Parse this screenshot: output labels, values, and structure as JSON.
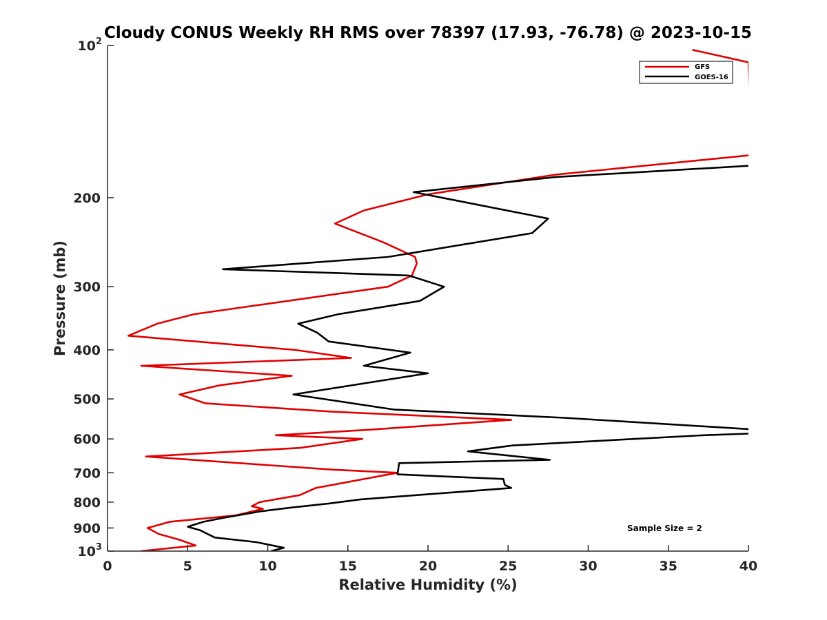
{
  "chart_data": {
    "type": "line",
    "title": "Cloudy CONUS Weekly RH RMS over 78397 (17.93, -76.78) @ 2023-10-15",
    "xlabel": "Relative Humidity (%)",
    "ylabel": "Pressure (mb)",
    "xlim": [
      0,
      40
    ],
    "ylim": [
      100,
      1000
    ],
    "y_scale": "log",
    "y_reversed": true,
    "x_ticks": [
      "0",
      "5",
      "10",
      "15",
      "20",
      "25",
      "30",
      "35",
      "40"
    ],
    "y_ticks": [
      {
        "value": 100,
        "base": "10",
        "exp": "2"
      },
      {
        "value": 200,
        "label": "200"
      },
      {
        "value": 300,
        "label": "300"
      },
      {
        "value": 400,
        "label": "400"
      },
      {
        "value": 500,
        "label": "500"
      },
      {
        "value": 600,
        "label": "600"
      },
      {
        "value": 700,
        "label": "700"
      },
      {
        "value": 800,
        "label": "800"
      },
      {
        "value": 900,
        "label": "900"
      },
      {
        "value": 1000,
        "base": "10",
        "exp": "3"
      }
    ],
    "grid": false,
    "legend_position": "top-right",
    "series": [
      {
        "name": "GFS",
        "color": "#e00000",
        "points": [
          [
            2.1,
            1000
          ],
          [
            5.5,
            975
          ],
          [
            4.5,
            950
          ],
          [
            3.2,
            925
          ],
          [
            2.5,
            900
          ],
          [
            3.9,
            875
          ],
          [
            8.0,
            850
          ],
          [
            9.7,
            825
          ],
          [
            9.0,
            815
          ],
          [
            9.5,
            800
          ],
          [
            12.0,
            775
          ],
          [
            13.0,
            750
          ],
          [
            18.1,
            700
          ],
          [
            14.0,
            690
          ],
          [
            2.4,
            650
          ],
          [
            12.0,
            625
          ],
          [
            15.9,
            600
          ],
          [
            10.5,
            590
          ],
          [
            16.5,
            575
          ],
          [
            25.2,
            550
          ],
          [
            14.0,
            530
          ],
          [
            6.1,
            510
          ],
          [
            4.5,
            490
          ],
          [
            7.0,
            470
          ],
          [
            11.5,
            450
          ],
          [
            2.1,
            430
          ],
          [
            15.2,
            415
          ],
          [
            11.7,
            400
          ],
          [
            1.3,
            375
          ],
          [
            3.1,
            355
          ],
          [
            5.4,
            340
          ],
          [
            17.5,
            300
          ],
          [
            19.0,
            285
          ],
          [
            19.3,
            270
          ],
          [
            19.2,
            262
          ],
          [
            17.2,
            245
          ],
          [
            14.2,
            225
          ],
          [
            16.0,
            212
          ],
          [
            20.0,
            197
          ],
          [
            28.0,
            180
          ],
          [
            40.0,
            165
          ],
          [
            40.2,
            164
          ],
          [
            40.0,
            108
          ],
          [
            36.5,
            102
          ]
        ]
      },
      {
        "name": "GOES-16",
        "color": "#000000",
        "points": [
          [
            10.2,
            1000
          ],
          [
            11.0,
            985
          ],
          [
            9.3,
            960
          ],
          [
            6.7,
            940
          ],
          [
            6.1,
            920
          ],
          [
            5.8,
            910
          ],
          [
            5.0,
            895
          ],
          [
            6.0,
            875
          ],
          [
            7.2,
            860
          ],
          [
            9.5,
            835
          ],
          [
            11.5,
            820
          ],
          [
            13.8,
            805
          ],
          [
            15.8,
            790
          ],
          [
            25.2,
            750
          ],
          [
            24.8,
            740
          ],
          [
            24.7,
            720
          ],
          [
            18.1,
            705
          ],
          [
            18.2,
            670
          ],
          [
            27.6,
            660
          ],
          [
            22.5,
            635
          ],
          [
            25.3,
            618
          ],
          [
            37.2,
            590
          ],
          [
            40.5,
            585
          ],
          [
            40.5,
            575
          ],
          [
            28.5,
            545
          ],
          [
            17.9,
            525
          ],
          [
            11.6,
            490
          ],
          [
            20.0,
            445
          ],
          [
            16.0,
            430
          ],
          [
            18.9,
            405
          ],
          [
            13.8,
            385
          ],
          [
            13.1,
            370
          ],
          [
            11.9,
            355
          ],
          [
            14.4,
            340
          ],
          [
            19.5,
            320
          ],
          [
            21.0,
            300
          ],
          [
            18.8,
            285
          ],
          [
            7.2,
            277
          ],
          [
            17.5,
            262
          ],
          [
            26.5,
            235
          ],
          [
            27.5,
            220
          ],
          [
            19.1,
            195
          ],
          [
            28.0,
            182
          ],
          [
            40.0,
            173
          ]
        ]
      }
    ],
    "annotation": "Sample Size = 2"
  }
}
